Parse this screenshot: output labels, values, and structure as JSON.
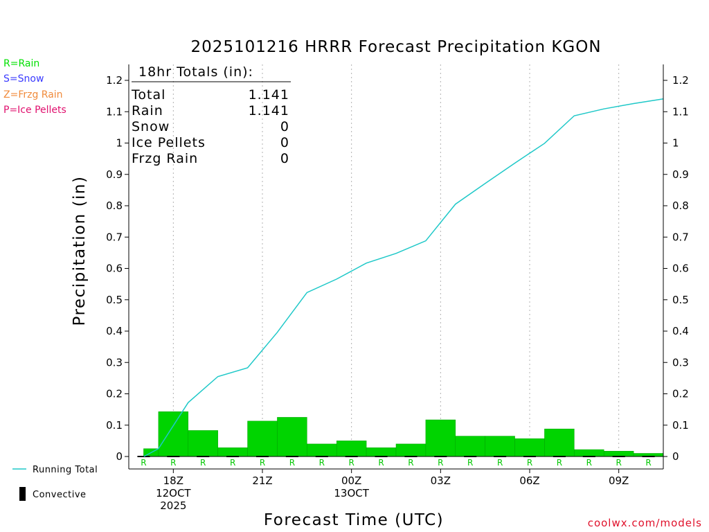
{
  "chart_data": {
    "type": "bar",
    "title": "2025101216 HRRR Forecast Precipitation KGON",
    "xlabel": "Forecast Time (UTC)",
    "ylabel": "Precipitation (in)",
    "ylim": [
      0,
      1.2
    ],
    "yticks": [
      "0",
      "0.1",
      "0.2",
      "0.3",
      "0.4",
      "0.5",
      "0.6",
      "0.7",
      "0.8",
      "0.9",
      "1",
      "1.1",
      "1.2"
    ],
    "x_hours": [
      17,
      18,
      19,
      20,
      21,
      22,
      23,
      24,
      25,
      26,
      27,
      28,
      29,
      30,
      31,
      32,
      33,
      34
    ],
    "series": [
      {
        "name": "Hourly Precipitation (Rain)",
        "color": "#00d400",
        "values": [
          0.025,
          0.143,
          0.083,
          0.028,
          0.113,
          0.125,
          0.04,
          0.05,
          0.028,
          0.04,
          0.117,
          0.065,
          0.065,
          0.057,
          0.088,
          0.022,
          0.017,
          0.01
        ]
      },
      {
        "name": "Running Total",
        "color": "#1ec8c8",
        "values": [
          0.025,
          0.172,
          0.255,
          0.283,
          0.396,
          0.523,
          0.566,
          0.617,
          0.648,
          0.688,
          0.805,
          0.871,
          0.936,
          0.999,
          1.087,
          1.109,
          1.126,
          1.141
        ]
      }
    ],
    "precip_types": [
      "R",
      "R",
      "R",
      "R",
      "R",
      "R",
      "R",
      "R",
      "R",
      "R",
      "R",
      "R",
      "R",
      "R",
      "R",
      "R",
      "R",
      "R"
    ],
    "xticks": [
      {
        "hour": 18,
        "labels": [
          "18Z",
          "12OCT",
          "2025"
        ]
      },
      {
        "hour": 21,
        "labels": [
          "21Z"
        ]
      },
      {
        "hour": 24,
        "labels": [
          "00Z",
          "13OCT"
        ]
      },
      {
        "hour": 27,
        "labels": [
          "03Z"
        ]
      },
      {
        "hour": 30,
        "labels": [
          "06Z"
        ]
      },
      {
        "hour": 33,
        "labels": [
          "09Z"
        ]
      }
    ],
    "legend": [
      {
        "label": "R=Rain",
        "color": "#00e000"
      },
      {
        "label": "S=Snow",
        "color": "#3a3aff"
      },
      {
        "label": "Z=Frzg Rain",
        "color": "#f08a3a"
      },
      {
        "label": "P=Ice Pellets",
        "color": "#e0106e"
      }
    ],
    "totals": {
      "header": "18hr Totals (in):",
      "rows": [
        {
          "label": "Total",
          "value": "1.141"
        },
        {
          "label": "Rain",
          "value": "1.141"
        },
        {
          "label": "Snow",
          "value": "0"
        },
        {
          "label": "Ice Pellets",
          "value": "0"
        },
        {
          "label": "Frzg Rain",
          "value": "0"
        }
      ]
    },
    "bottom_legend": {
      "running_total": "Running Total",
      "convective": "Convective"
    },
    "credit": "coolwx.com/models"
  }
}
